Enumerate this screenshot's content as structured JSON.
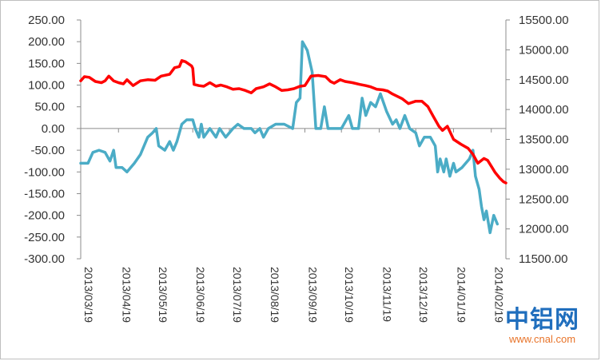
{
  "chart_data": {
    "type": "line",
    "x_axis": {
      "tick_labels": [
        "2013/03/19",
        "2013/04/19",
        "2013/05/19",
        "2013/06/19",
        "2013/07/19",
        "2013/08/19",
        "2013/09/19",
        "2013/10/19",
        "2013/11/19",
        "2013/12/19",
        "2014/01/19",
        "2014/02/19"
      ]
    },
    "y_left": {
      "ylim": [
        -300,
        250
      ],
      "ticks": [
        "250.00",
        "200.00",
        "150.00",
        "100.00",
        "50.00",
        "0.00",
        "-50.00",
        "-100.00",
        "-150.00",
        "-200.00",
        "-250.00",
        "-300.00"
      ]
    },
    "y_right": {
      "ylim": [
        11500,
        15500
      ],
      "ticks": [
        "15500.00",
        "15000.00",
        "14500.00",
        "14000.00",
        "13500.00",
        "13000.00",
        "12500.00",
        "12000.00",
        "11500.00"
      ]
    },
    "grid": false,
    "legend": "none",
    "series": [
      {
        "axis": "left",
        "color": "#4bacc6",
        "points": [
          [
            "2013-03-19",
            -80
          ],
          [
            "2013-03-25",
            -80
          ],
          [
            "2013-03-29",
            -55
          ],
          [
            "2013-04-03",
            -50
          ],
          [
            "2013-04-08",
            -55
          ],
          [
            "2013-04-12",
            -75
          ],
          [
            "2013-04-15",
            -50
          ],
          [
            "2013-04-17",
            -90
          ],
          [
            "2013-04-22",
            -90
          ],
          [
            "2013-04-26",
            -100
          ],
          [
            "2013-05-02",
            -80
          ],
          [
            "2013-05-07",
            -60
          ],
          [
            "2013-05-13",
            -20
          ],
          [
            "2013-05-17",
            -10
          ],
          [
            "2013-05-20",
            0
          ],
          [
            "2013-05-22",
            -40
          ],
          [
            "2013-05-27",
            -50
          ],
          [
            "2013-05-31",
            -30
          ],
          [
            "2013-06-03",
            -50
          ],
          [
            "2013-06-06",
            -30
          ],
          [
            "2013-06-10",
            10
          ],
          [
            "2013-06-14",
            20
          ],
          [
            "2013-06-19",
            20
          ],
          [
            "2013-06-21",
            0
          ],
          [
            "2013-06-24",
            -20
          ],
          [
            "2013-06-26",
            10
          ],
          [
            "2013-06-28",
            -20
          ],
          [
            "2013-07-03",
            0
          ],
          [
            "2013-07-08",
            -20
          ],
          [
            "2013-07-11",
            0
          ],
          [
            "2013-07-16",
            -20
          ],
          [
            "2013-07-22",
            0
          ],
          [
            "2013-07-26",
            10
          ],
          [
            "2013-07-31",
            0
          ],
          [
            "2013-08-06",
            0
          ],
          [
            "2013-08-09",
            -10
          ],
          [
            "2013-08-13",
            0
          ],
          [
            "2013-08-16",
            -20
          ],
          [
            "2013-08-20",
            0
          ],
          [
            "2013-08-26",
            10
          ],
          [
            "2013-09-02",
            10
          ],
          [
            "2013-09-09",
            0
          ],
          [
            "2013-09-12",
            60
          ],
          [
            "2013-09-15",
            70
          ],
          [
            "2013-09-17",
            200
          ],
          [
            "2013-09-21",
            180
          ],
          [
            "2013-09-25",
            130
          ],
          [
            "2013-09-28",
            0
          ],
          [
            "2013-10-02",
            0
          ],
          [
            "2013-10-05",
            50
          ],
          [
            "2013-10-08",
            0
          ],
          [
            "2013-10-15",
            0
          ],
          [
            "2013-10-19",
            0
          ],
          [
            "2013-10-25",
            30
          ],
          [
            "2013-10-28",
            0
          ],
          [
            "2013-11-02",
            0
          ],
          [
            "2013-11-05",
            70
          ],
          [
            "2013-11-08",
            30
          ],
          [
            "2013-11-12",
            60
          ],
          [
            "2013-11-16",
            50
          ],
          [
            "2013-11-20",
            80
          ],
          [
            "2013-11-25",
            40
          ],
          [
            "2013-11-30",
            10
          ],
          [
            "2013-12-03",
            20
          ],
          [
            "2013-12-06",
            0
          ],
          [
            "2013-12-10",
            30
          ],
          [
            "2013-12-14",
            0
          ],
          [
            "2013-12-19",
            -10
          ],
          [
            "2013-12-22",
            -40
          ],
          [
            "2013-12-26",
            -20
          ],
          [
            "2013-12-31",
            -20
          ],
          [
            "2014-01-04",
            -40
          ],
          [
            "2014-01-06",
            -100
          ],
          [
            "2014-01-08",
            -70
          ],
          [
            "2014-01-11",
            -100
          ],
          [
            "2014-01-13",
            -70
          ],
          [
            "2014-01-16",
            -110
          ],
          [
            "2014-01-19",
            -80
          ],
          [
            "2014-01-21",
            -100
          ],
          [
            "2014-01-26",
            -90
          ],
          [
            "2014-02-01",
            -70
          ],
          [
            "2014-02-04",
            -50
          ],
          [
            "2014-02-06",
            -110
          ],
          [
            "2014-02-09",
            -140
          ],
          [
            "2014-02-11",
            -180
          ],
          [
            "2014-02-13",
            -210
          ],
          [
            "2014-02-15",
            -190
          ],
          [
            "2014-02-18",
            -240
          ],
          [
            "2014-02-21",
            -200
          ],
          [
            "2014-02-24",
            -220
          ]
        ]
      },
      {
        "axis": "right",
        "color": "#ff0000",
        "points": [
          [
            "2013-03-19",
            14480
          ],
          [
            "2013-03-22",
            14550
          ],
          [
            "2013-03-26",
            14540
          ],
          [
            "2013-03-31",
            14470
          ],
          [
            "2013-04-05",
            14450
          ],
          [
            "2013-04-08",
            14480
          ],
          [
            "2013-04-11",
            14560
          ],
          [
            "2013-04-15",
            14480
          ],
          [
            "2013-04-19",
            14450
          ],
          [
            "2013-04-23",
            14430
          ],
          [
            "2013-04-26",
            14500
          ],
          [
            "2013-04-29",
            14440
          ],
          [
            "2013-05-01",
            14400
          ],
          [
            "2013-05-07",
            14480
          ],
          [
            "2013-05-13",
            14500
          ],
          [
            "2013-05-19",
            14490
          ],
          [
            "2013-05-24",
            14560
          ],
          [
            "2013-05-31",
            14590
          ],
          [
            "2013-06-04",
            14700
          ],
          [
            "2013-06-08",
            14720
          ],
          [
            "2013-06-10",
            14820
          ],
          [
            "2013-06-13",
            14800
          ],
          [
            "2013-06-18",
            14730
          ],
          [
            "2013-06-19",
            14690
          ],
          [
            "2013-06-20",
            14420
          ],
          [
            "2013-06-24",
            14400
          ],
          [
            "2013-06-28",
            14390
          ],
          [
            "2013-07-03",
            14450
          ],
          [
            "2013-07-08",
            14390
          ],
          [
            "2013-07-12",
            14410
          ],
          [
            "2013-07-17",
            14380
          ],
          [
            "2013-07-22",
            14340
          ],
          [
            "2013-07-27",
            14350
          ],
          [
            "2013-08-01",
            14320
          ],
          [
            "2013-08-06",
            14280
          ],
          [
            "2013-08-10",
            14350
          ],
          [
            "2013-08-16",
            14380
          ],
          [
            "2013-08-21",
            14430
          ],
          [
            "2013-08-26",
            14380
          ],
          [
            "2013-08-31",
            14320
          ],
          [
            "2013-09-05",
            14330
          ],
          [
            "2013-09-10",
            14350
          ],
          [
            "2013-09-15",
            14390
          ],
          [
            "2013-09-19",
            14400
          ],
          [
            "2013-09-24",
            14560
          ],
          [
            "2013-09-30",
            14570
          ],
          [
            "2013-10-06",
            14550
          ],
          [
            "2013-10-10",
            14470
          ],
          [
            "2013-10-13",
            14440
          ],
          [
            "2013-10-18",
            14500
          ],
          [
            "2013-10-22",
            14470
          ],
          [
            "2013-10-28",
            14450
          ],
          [
            "2013-11-03",
            14420
          ],
          [
            "2013-11-08",
            14400
          ],
          [
            "2013-11-12",
            14380
          ],
          [
            "2013-11-17",
            14340
          ],
          [
            "2013-11-22",
            14330
          ],
          [
            "2013-11-26",
            14310
          ],
          [
            "2013-11-30",
            14260
          ],
          [
            "2013-12-04",
            14220
          ],
          [
            "2013-12-08",
            14180
          ],
          [
            "2013-12-13",
            14100
          ],
          [
            "2013-12-19",
            14140
          ],
          [
            "2013-12-24",
            14140
          ],
          [
            "2013-12-29",
            14050
          ],
          [
            "2014-01-02",
            13900
          ],
          [
            "2014-01-07",
            13720
          ],
          [
            "2014-01-10",
            13650
          ],
          [
            "2014-01-14",
            13720
          ],
          [
            "2014-01-19",
            13500
          ],
          [
            "2014-01-25",
            13420
          ],
          [
            "2014-01-31",
            13350
          ],
          [
            "2014-02-04",
            13250
          ],
          [
            "2014-02-08",
            13100
          ],
          [
            "2014-02-13",
            13180
          ],
          [
            "2014-02-16",
            13150
          ],
          [
            "2014-02-19",
            13050
          ],
          [
            "2014-02-22",
            12950
          ],
          [
            "2014-02-26",
            12850
          ],
          [
            "2014-03-01",
            12790
          ],
          [
            "2014-03-03",
            12770
          ]
        ]
      }
    ]
  },
  "watermark": {
    "brand": "中铝网",
    "url": "www.cnal.com"
  }
}
